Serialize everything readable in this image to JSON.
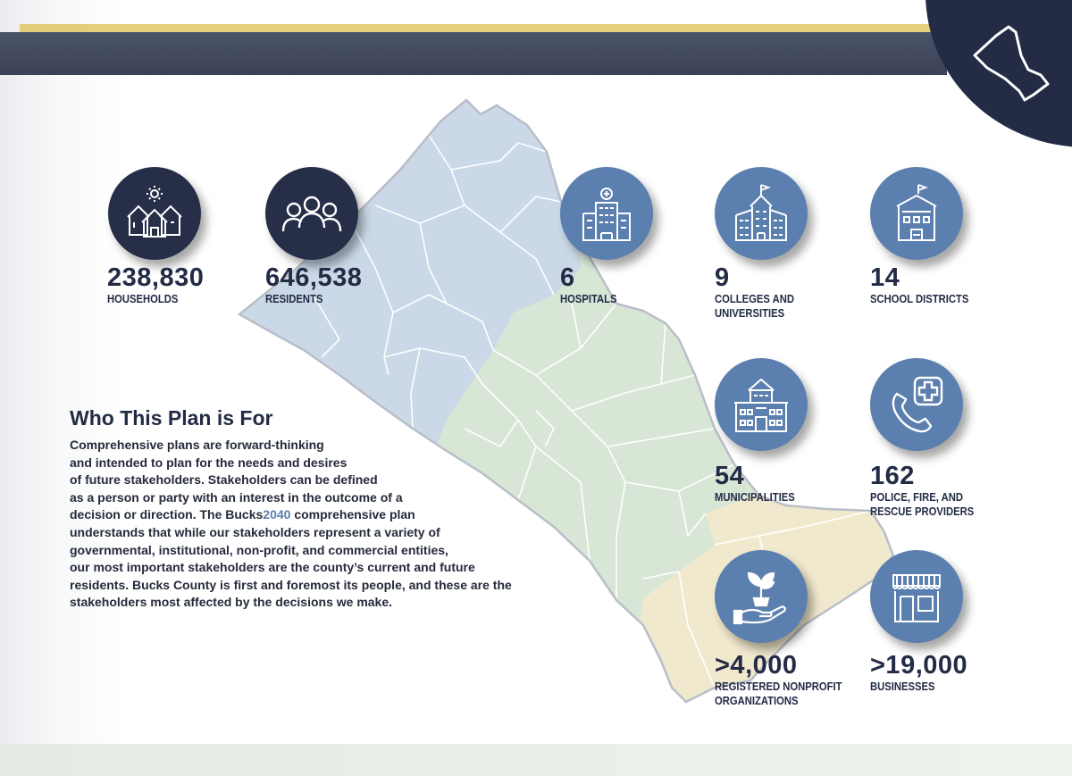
{
  "section": {
    "heading_pre": "Who ",
    "heading_highlight": "This Plan is For",
    "body_lines": [
      "Comprehensive plans are forward-thinking",
      "and intended to plan for the needs and desires",
      "of future stakeholders. Stakeholders can be defined",
      "as a person or party with an interest in the outcome of a",
      "decision or direction.",
      "The",
      "Bucks",
      "2040",
      "comprehensive plan",
      "understands that while our stakeholders represent a variety of",
      "governmental, institutional, non-profit, and commercial entities,",
      "our most important stakeholders are the county’s current and future",
      "residents. Bucks County is first and foremost its people, and these are the",
      "stakeholders most affected by the decisions we make."
    ]
  },
  "stats": {
    "households": {
      "value": "238,830",
      "label": "HOUSEHOLDS",
      "icon": "houses-icon"
    },
    "residents": {
      "value": "646,538",
      "label": "RESIDENTS",
      "icon": "people-icon"
    },
    "hospitals": {
      "value": "6",
      "label": "HOSPITALS",
      "icon": "hospital-icon"
    },
    "colleges": {
      "value": "9",
      "label_1": "COLLEGES AND",
      "label_2": "UNIVERSITIES",
      "icon": "college-icon"
    },
    "school_districts": {
      "value": "14",
      "label": "SCHOOL DISTRICTS",
      "icon": "school-icon"
    },
    "municipalities": {
      "value": "54",
      "label": "MUNICIPALITIES",
      "icon": "municipal-building-icon"
    },
    "emergency": {
      "value": "162",
      "label_1": "POLICE, FIRE, AND",
      "label_2": "RESCUE PROVIDERS",
      "icon": "emergency-phone-icon"
    },
    "nonprofits": {
      "value": ">4,000",
      "label_1": "REGISTERED NONPROFIT",
      "label_2": "ORGANIZATIONS",
      "icon": "plant-hand-icon"
    },
    "businesses": {
      "value": ">19,000",
      "label": "BUSINESSES",
      "icon": "storefront-icon"
    }
  },
  "colors": {
    "navy": "#232b45",
    "blue": "#5b7fae",
    "gold": "#e3cf7a",
    "map_upper": "#cad8e8",
    "map_central": "#d8e6d6",
    "map_lower": "#f1e9cd"
  }
}
